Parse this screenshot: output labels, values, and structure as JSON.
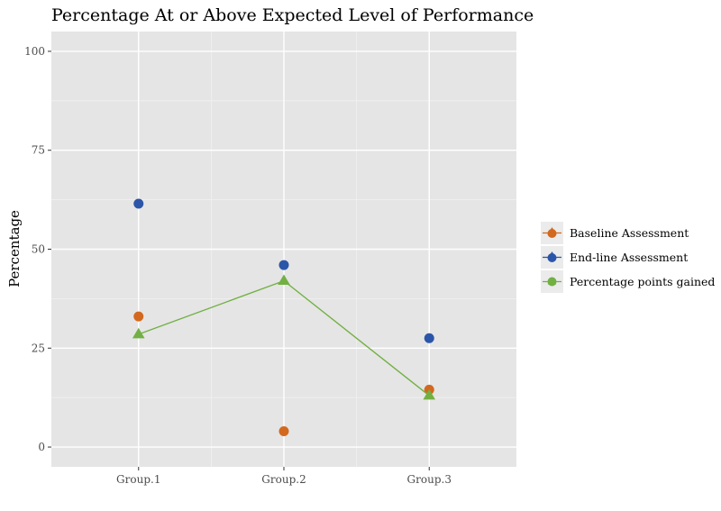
{
  "chart_data": {
    "type": "scatter",
    "title": "Percentage At or Above Expected Level of Performance",
    "xlabel": "",
    "ylabel": "Percentage",
    "categories": [
      "Group.1",
      "Group.2",
      "Group.3"
    ],
    "ylim": [
      -5,
      105
    ],
    "yticks": [
      0,
      25,
      50,
      75,
      100
    ],
    "grid": true,
    "legend_position": "right",
    "series": [
      {
        "name": "Baseline Assessment",
        "marker": "circle",
        "line": false,
        "color": "#d2691e",
        "values": [
          33,
          4,
          14.5
        ]
      },
      {
        "name": "End-line Assessment",
        "marker": "circle",
        "line": false,
        "color": "#2b55a8",
        "values": [
          61.5,
          46,
          27.5
        ]
      },
      {
        "name": "Percentage points gained",
        "marker": "triangle",
        "line": true,
        "color": "#72b043",
        "values": [
          28.5,
          42,
          13
        ]
      }
    ]
  }
}
